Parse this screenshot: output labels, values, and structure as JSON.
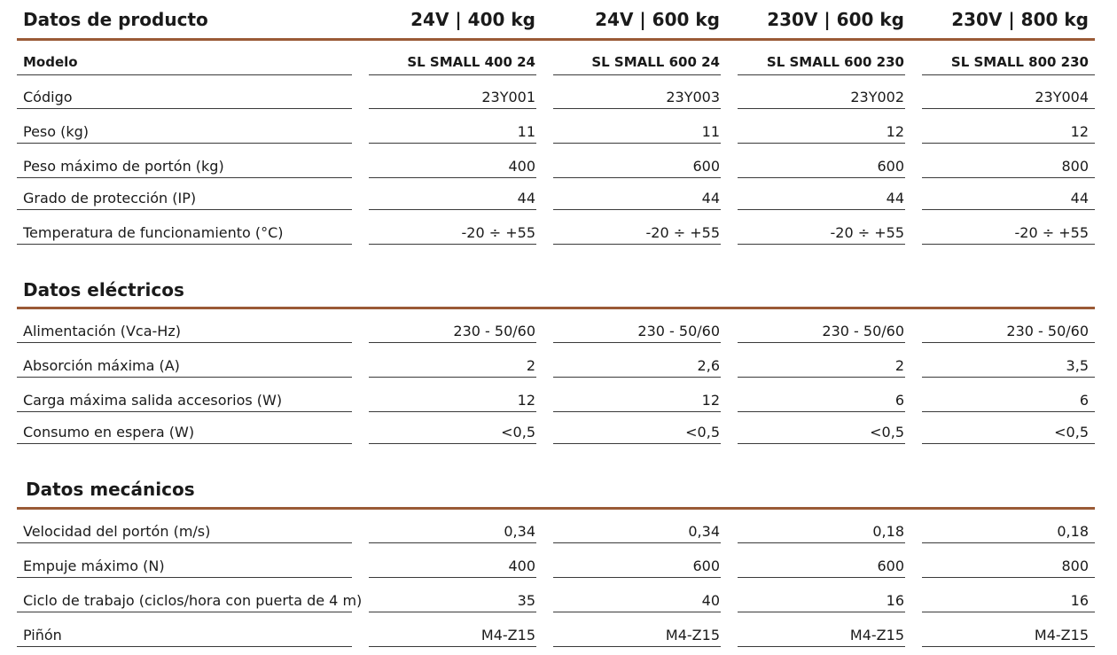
{
  "sections": [
    {
      "title": "Datos de producto",
      "columns": [
        "24V | 400 kg",
        "24V | 600 kg",
        "230V | 600 kg",
        "230V | 800 kg"
      ],
      "rows": [
        {
          "label": "Modelo",
          "values": [
            "SL SMALL 400 24",
            "SL SMALL 600 24",
            "SL SMALL 600 230",
            "SL SMALL 800 230"
          ]
        },
        {
          "label": "Código",
          "values": [
            "23Y001",
            "23Y003",
            "23Y002",
            "23Y004"
          ]
        },
        {
          "label": "Peso (kg)",
          "values": [
            "11",
            "11",
            "12",
            "12"
          ]
        },
        {
          "label": "Peso máximo de portón (kg)",
          "values": [
            "400",
            "600",
            "600",
            "800"
          ]
        },
        {
          "label": "Grado de protección (IP)",
          "values": [
            "44",
            "44",
            "44",
            "44"
          ]
        },
        {
          "label": "Temperatura de funcionamiento (°C)",
          "values": [
            "-20 ÷ +55",
            "-20 ÷ +55",
            "-20 ÷ +55",
            "-20 ÷ +55"
          ]
        }
      ]
    },
    {
      "title": "Datos eléctricos",
      "rows": [
        {
          "label": "Alimentación (Vca-Hz)",
          "values": [
            "230 - 50/60",
            "230 - 50/60",
            "230 - 50/60",
            "230 - 50/60"
          ]
        },
        {
          "label": "Absorción máxima (A)",
          "values": [
            "2",
            "2,6",
            "2",
            "3,5"
          ]
        },
        {
          "label": "Carga máxima salida accesorios (W)",
          "values": [
            "12",
            "12",
            "6",
            "6"
          ]
        },
        {
          "label": "Consumo en espera (W)",
          "values": [
            "<0,5",
            "<0,5",
            "<0,5",
            "<0,5"
          ]
        }
      ]
    },
    {
      "title": "Datos mecánicos",
      "rows": [
        {
          "label": "Velocidad del portón (m/s)",
          "values": [
            "0,34",
            "0,34",
            "0,18",
            "0,18"
          ]
        },
        {
          "label": "Empuje máximo (N)",
          "values": [
            "400",
            "600",
            "600",
            "800"
          ]
        },
        {
          "label": "Ciclo de trabajo (ciclos/hora con puerta de 4 m)",
          "values": [
            "35",
            "40",
            "16",
            "16"
          ]
        },
        {
          "label": "Piñón",
          "values": [
            "M4-Z15",
            "M4-Z15",
            "M4-Z15",
            "M4-Z15"
          ]
        }
      ]
    }
  ]
}
